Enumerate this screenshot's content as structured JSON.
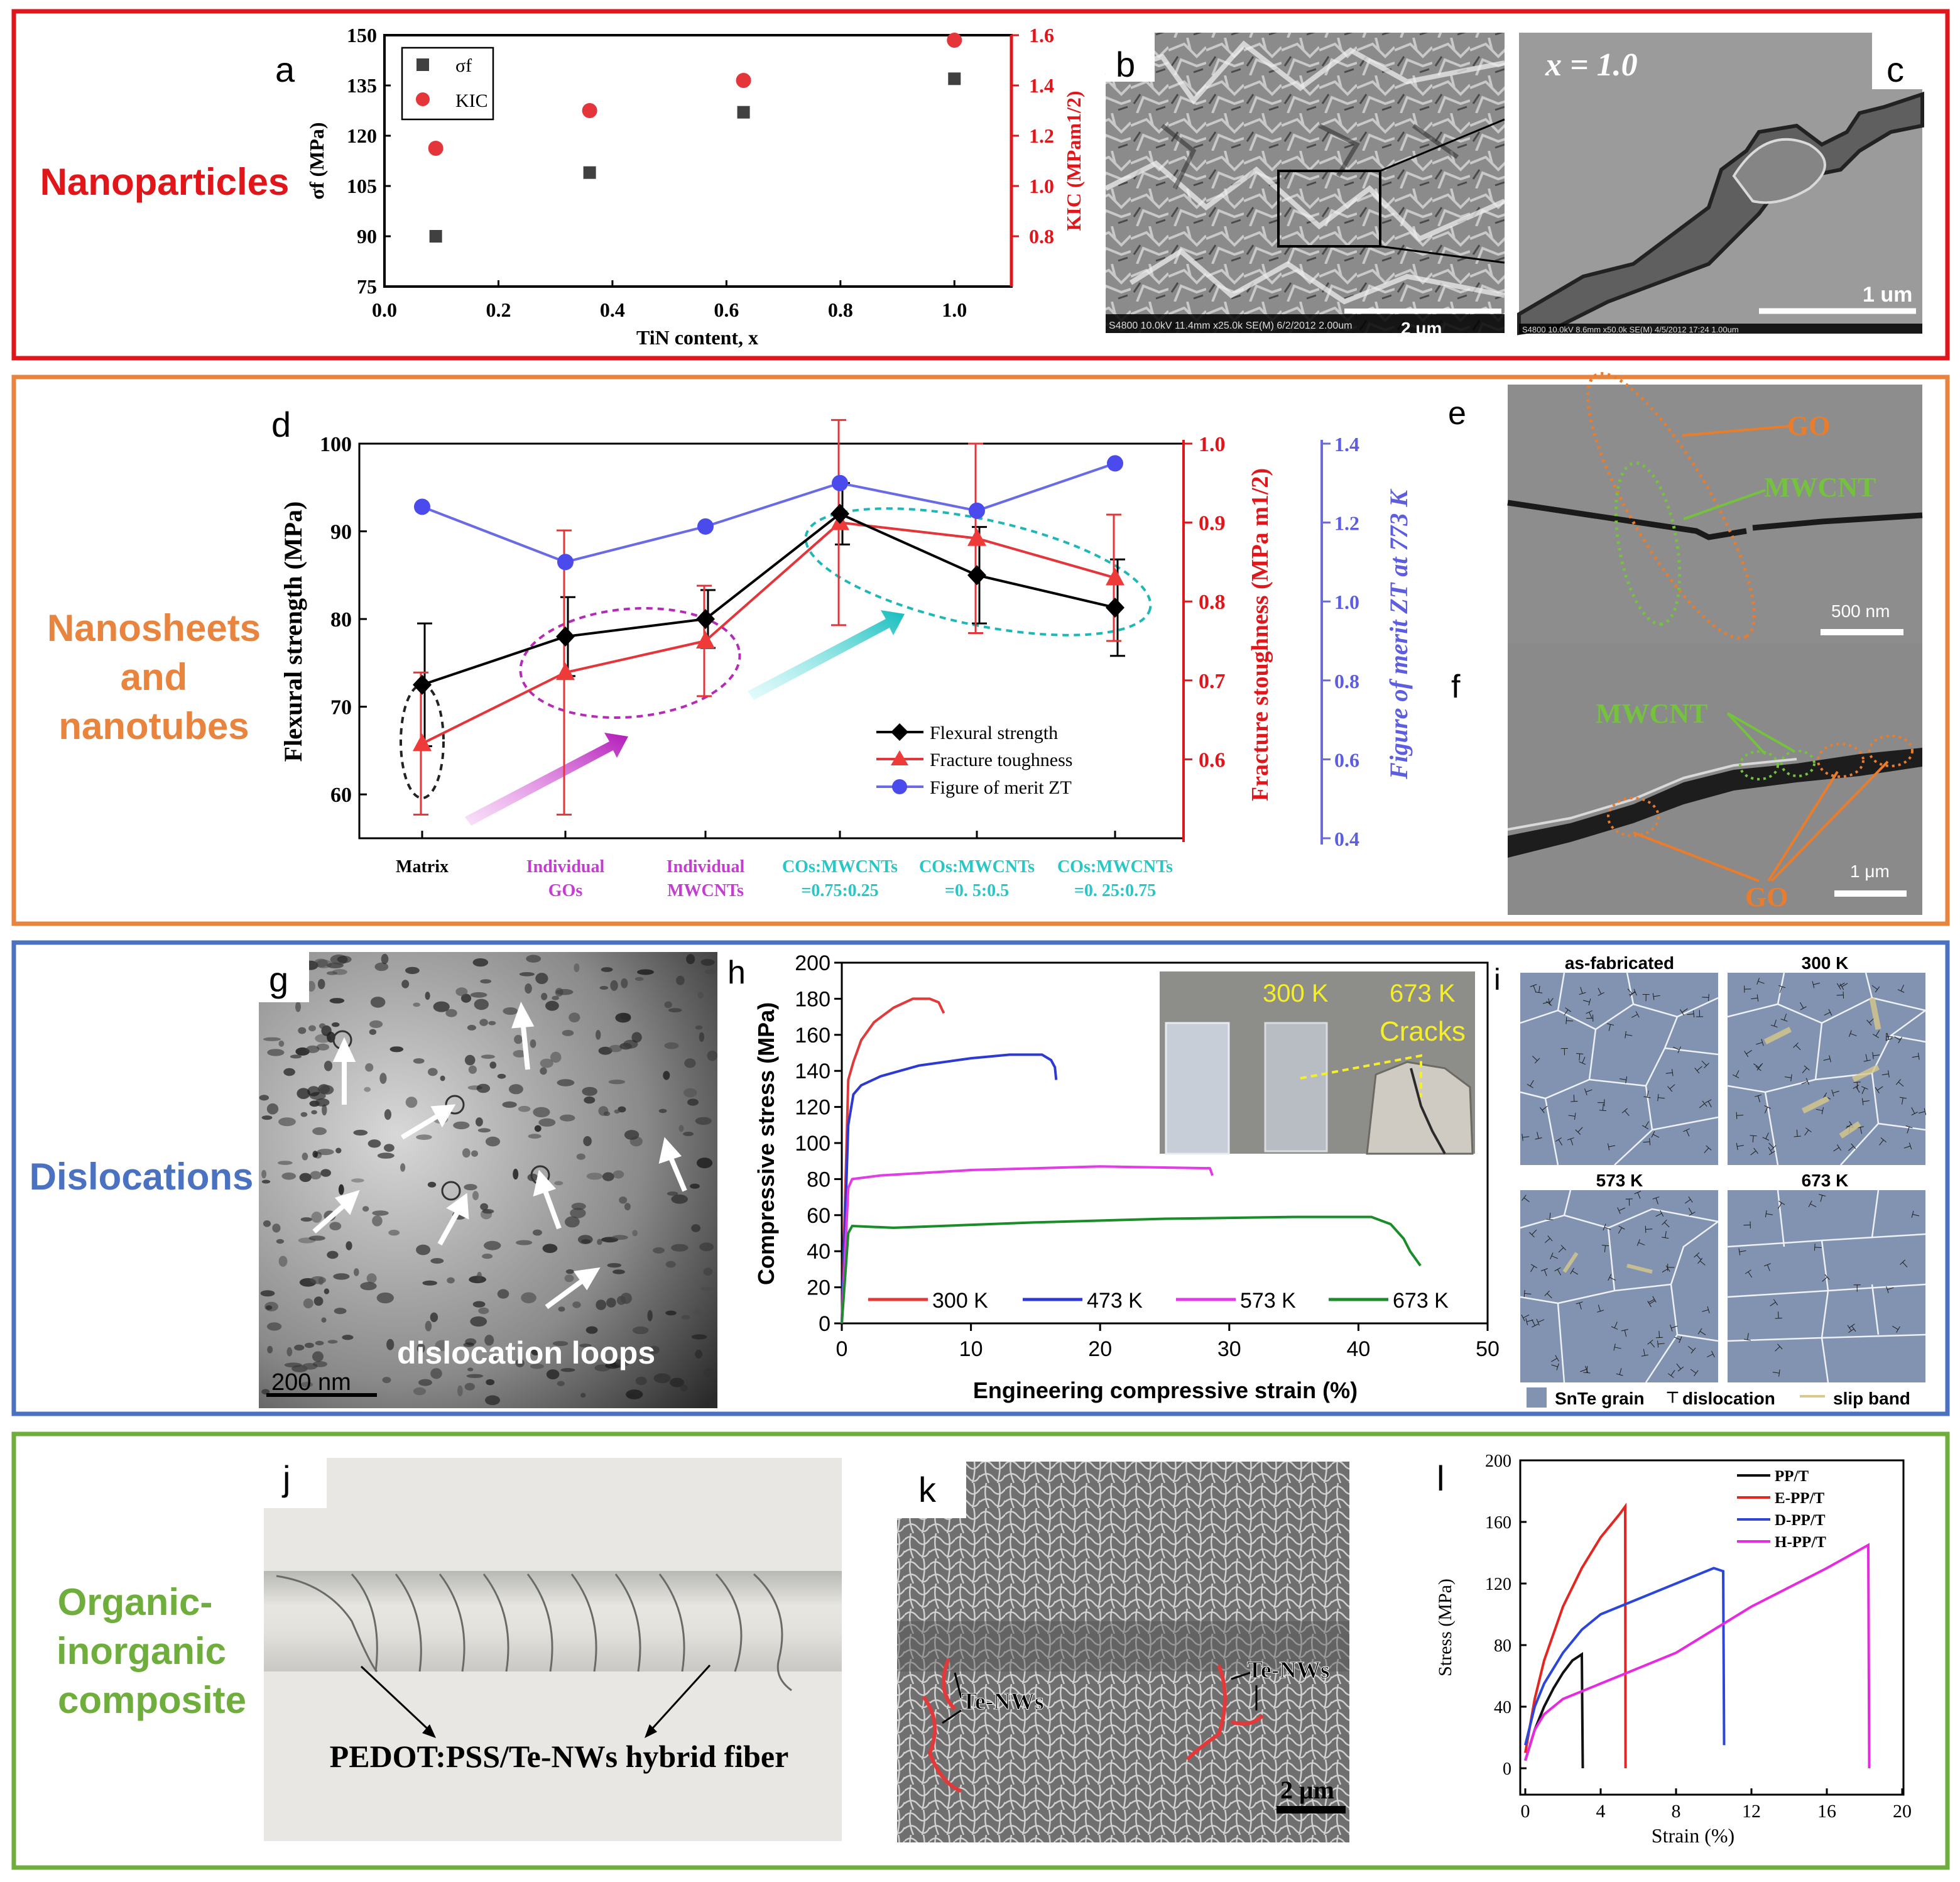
{
  "rows": {
    "nanoparticles": {
      "label": "Nanoparticles",
      "color": "#e0161b"
    },
    "nanosheets": {
      "label_lines": [
        "Nanosheets",
        "and",
        "nanotubes"
      ],
      "color": "#e8843e"
    },
    "dislocations": {
      "label": "Dislocations",
      "color": "#4a72c0"
    },
    "organic": {
      "label_lines": [
        "Organic-",
        "inorganic",
        "composite"
      ],
      "color": "#6fae3c"
    }
  },
  "panel_letters": {
    "a": "a",
    "b": "b",
    "c": "c",
    "d": "d",
    "e": "e",
    "f": "f",
    "g": "g",
    "h": "h",
    "i": "i",
    "j": "j",
    "k": "k",
    "l": "l"
  },
  "panel_a": {
    "xlabel": "TiN content, x",
    "ylabel_left": "σf (MPa)",
    "ylabel_right": "KIC (MPam1/2)",
    "legend": [
      "σf",
      "KIC"
    ],
    "series_colors": {
      "sigma": "#404040",
      "kic": "#e3353a"
    }
  },
  "panel_b": {
    "scale": "2 um",
    "footer": "S4800 10.0kV 11.4mm x25.0k SE(M) 6/2/2012 2.00um"
  },
  "panel_c": {
    "label": "x = 1.0",
    "scale": "1 um",
    "footer": "S4800 10.0kV 8.6mm x50.0k SE(M) 4/5/2012 17:24 1.00um"
  },
  "panel_d": {
    "ylabel_left": "Flexural strength (MPa)",
    "ylabel_red": "Fracture stoughness (MPa m1/2)",
    "ylabel_blue": "Figure of merit ZT at 773 K",
    "legend": [
      "Flexural strength",
      "Fracture toughness",
      "Figure of merit ZT"
    ],
    "categories": [
      {
        "lines": [
          "Matrix"
        ],
        "color": "#000000"
      },
      {
        "lines": [
          "Individual",
          "GOs"
        ],
        "color": "#c23ecf"
      },
      {
        "lines": [
          "Individual",
          "MWCNTs"
        ],
        "color": "#c23ecf"
      },
      {
        "lines": [
          "COs:MWCNTs",
          "=0.75:0.25"
        ],
        "color": "#29c6c6"
      },
      {
        "lines": [
          "COs:MWCNTs",
          "=0. 5:0.5"
        ],
        "color": "#29c6c6"
      },
      {
        "lines": [
          "COs:MWCNTs",
          "=0. 25:0.75"
        ],
        "color": "#29c6c6"
      }
    ]
  },
  "panel_e": {
    "go": "GO",
    "mwcnt": "MWCNT",
    "scale": "500 nm"
  },
  "panel_f": {
    "mwcnt": "MWCNT",
    "go": "GO",
    "scale": "1 μm"
  },
  "panel_g": {
    "caption": "dislocation loops",
    "scale": "200 nm"
  },
  "panel_h": {
    "ylabel": "Compressive stress (MPa)",
    "xlabel": "Engineering compressive strain (%)",
    "inset": {
      "t1": "300 K",
      "t2": "673 K",
      "cracks": "Cracks"
    }
  },
  "panel_i": {
    "titles": [
      "as-fabricated",
      "300 K",
      "573 K",
      "673 K"
    ],
    "legend": {
      "grain": "SnTe grain",
      "dislocation": "dislocation",
      "slip": "slip band"
    }
  },
  "panel_j": {
    "caption": "PEDOT:PSS/Te-NWs hybrid fiber"
  },
  "panel_k": {
    "label1": "Te-NWs",
    "label2": "Te-NWs",
    "scale": "2 μm"
  },
  "panel_l": {
    "xlabel": "Strain (%)",
    "ylabel": "Stress (MPa)"
  },
  "chart_data": [
    {
      "type": "scatter",
      "panel": "a",
      "xlabel": "TiN content, x",
      "ylabel": "σf (MPa)",
      "y2label": "KIC (MPam1/2)",
      "xlim": [
        0,
        1.1
      ],
      "ylim": [
        75,
        150
      ],
      "y2lim": [
        0.6,
        1.6
      ],
      "xticks": [
        0.0,
        0.2,
        0.4,
        0.6,
        0.8,
        1.0
      ],
      "yticks": [
        75,
        90,
        105,
        120,
        135,
        150
      ],
      "y2ticks": [
        0.8,
        1.0,
        1.2,
        1.4,
        1.6
      ],
      "series": [
        {
          "name": "σf",
          "axis": "left",
          "x": [
            0.09,
            0.36,
            0.63,
            1.0
          ],
          "y": [
            90,
            109,
            127,
            137
          ]
        },
        {
          "name": "KIC",
          "axis": "right",
          "x": [
            0.09,
            0.36,
            0.63,
            1.0
          ],
          "y": [
            1.15,
            1.3,
            1.42,
            1.58
          ]
        }
      ],
      "legend": "top-left"
    },
    {
      "type": "line",
      "panel": "d",
      "ylabel": "Flexural strength (MPa)",
      "y2label": "Fracture stoughness (MPa m1/2)",
      "y3label": "Figure of merit ZT at 773 K",
      "ylim": [
        55,
        100
      ],
      "y2lim": [
        0.5,
        1.0
      ],
      "y3lim": [
        0.4,
        1.4
      ],
      "yticks": [
        60,
        70,
        80,
        90,
        100
      ],
      "y2ticks": [
        0.6,
        0.7,
        0.8,
        0.9,
        1.0
      ],
      "y3ticks": [
        0.4,
        0.6,
        0.8,
        1.0,
        1.2,
        1.4
      ],
      "series": [
        {
          "name": "Flexural strength",
          "axis": "left",
          "values": [
            72.5,
            78,
            80,
            92,
            85,
            81.3
          ],
          "err": [
            7,
            4.5,
            3.3,
            3.5,
            5.5,
            5.5
          ]
        },
        {
          "name": "Fracture toughness",
          "axis": "right",
          "values": [
            0.62,
            0.71,
            0.75,
            0.9,
            0.88,
            0.83
          ],
          "err": [
            0.09,
            0.18,
            0.07,
            0.13,
            0.12,
            0.08
          ]
        },
        {
          "name": "Figure of merit ZT",
          "axis": "right2",
          "values": [
            1.24,
            1.1,
            1.19,
            1.3,
            1.23,
            1.35
          ]
        }
      ],
      "legend": "bottom-right"
    },
    {
      "type": "line",
      "panel": "h",
      "xlabel": "Engineering compressive strain (%)",
      "ylabel": "Compressive stress (MPa)",
      "xlim": [
        0,
        50
      ],
      "ylim": [
        0,
        200
      ],
      "xticks": [
        0,
        10,
        20,
        30,
        40,
        50
      ],
      "yticks": [
        0,
        20,
        40,
        60,
        80,
        100,
        120,
        140,
        160,
        180,
        200
      ],
      "series": [
        {
          "name": "300 K",
          "color": "#e03a3a",
          "x": [
            0,
            0.5,
            0.9,
            1.5,
            2.5,
            4,
            5.5,
            6.8,
            7.5,
            7.9
          ],
          "y": [
            0,
            135,
            145,
            157,
            167,
            175,
            180,
            180,
            178,
            172
          ]
        },
        {
          "name": "473 K",
          "color": "#2c39d4",
          "x": [
            0,
            0.5,
            0.9,
            1.5,
            3,
            6,
            10,
            13,
            15.5,
            16.2,
            16.5,
            16.6
          ],
          "y": [
            0,
            110,
            127,
            132,
            137,
            143,
            147,
            149,
            149,
            146,
            142,
            135
          ]
        },
        {
          "name": "573 K",
          "color": "#e13ce5",
          "x": [
            0,
            0.5,
            0.8,
            3,
            10,
            20,
            28.5,
            28.6,
            28.7
          ],
          "y": [
            0,
            75,
            80,
            82,
            85,
            87,
            86,
            84,
            82
          ]
        },
        {
          "name": "673 K",
          "color": "#1a8d2a",
          "x": [
            0,
            0.5,
            0.8,
            4,
            15,
            25,
            35,
            41,
            42.5,
            43.5,
            44,
            44.5,
            44.8
          ],
          "y": [
            0,
            50,
            54,
            53,
            56,
            58,
            59,
            59,
            55,
            47,
            40,
            35,
            32
          ]
        }
      ],
      "legend": "bottom"
    },
    {
      "type": "line",
      "panel": "l",
      "xlabel": "Strain (%)",
      "ylabel": "Stress (MPa)",
      "xlim": [
        0,
        20
      ],
      "ylim": [
        0,
        200
      ],
      "xticks": [
        0,
        4,
        8,
        12,
        16,
        20
      ],
      "yticks": [
        0,
        40,
        80,
        120,
        160,
        200
      ],
      "series": [
        {
          "name": "PP/T",
          "color": "#111111",
          "x": [
            0,
            0.5,
            1.0,
            1.5,
            2.0,
            2.5,
            3.0,
            3.05
          ],
          "y": [
            5,
            25,
            40,
            52,
            62,
            70,
            74,
            0
          ]
        },
        {
          "name": "E-PP/T",
          "color": "#e52521",
          "x": [
            0,
            0.5,
            1,
            2,
            3,
            4,
            5,
            5.3,
            5.32
          ],
          "y": [
            10,
            45,
            70,
            105,
            130,
            150,
            165,
            170,
            0
          ]
        },
        {
          "name": "D-PP/T",
          "color": "#2b46d8",
          "x": [
            0,
            0.5,
            1,
            2,
            3,
            4,
            6,
            8,
            10,
            10.5,
            10.55
          ],
          "y": [
            15,
            40,
            55,
            75,
            90,
            100,
            110,
            120,
            130,
            128,
            15
          ]
        },
        {
          "name": "H-PP/T",
          "color": "#e729e0",
          "x": [
            0,
            0.5,
            1,
            2,
            4,
            8,
            12,
            16,
            18.2,
            18.25
          ],
          "y": [
            5,
            25,
            35,
            45,
            55,
            75,
            105,
            130,
            145,
            0
          ]
        }
      ],
      "legend": "top-right"
    }
  ]
}
